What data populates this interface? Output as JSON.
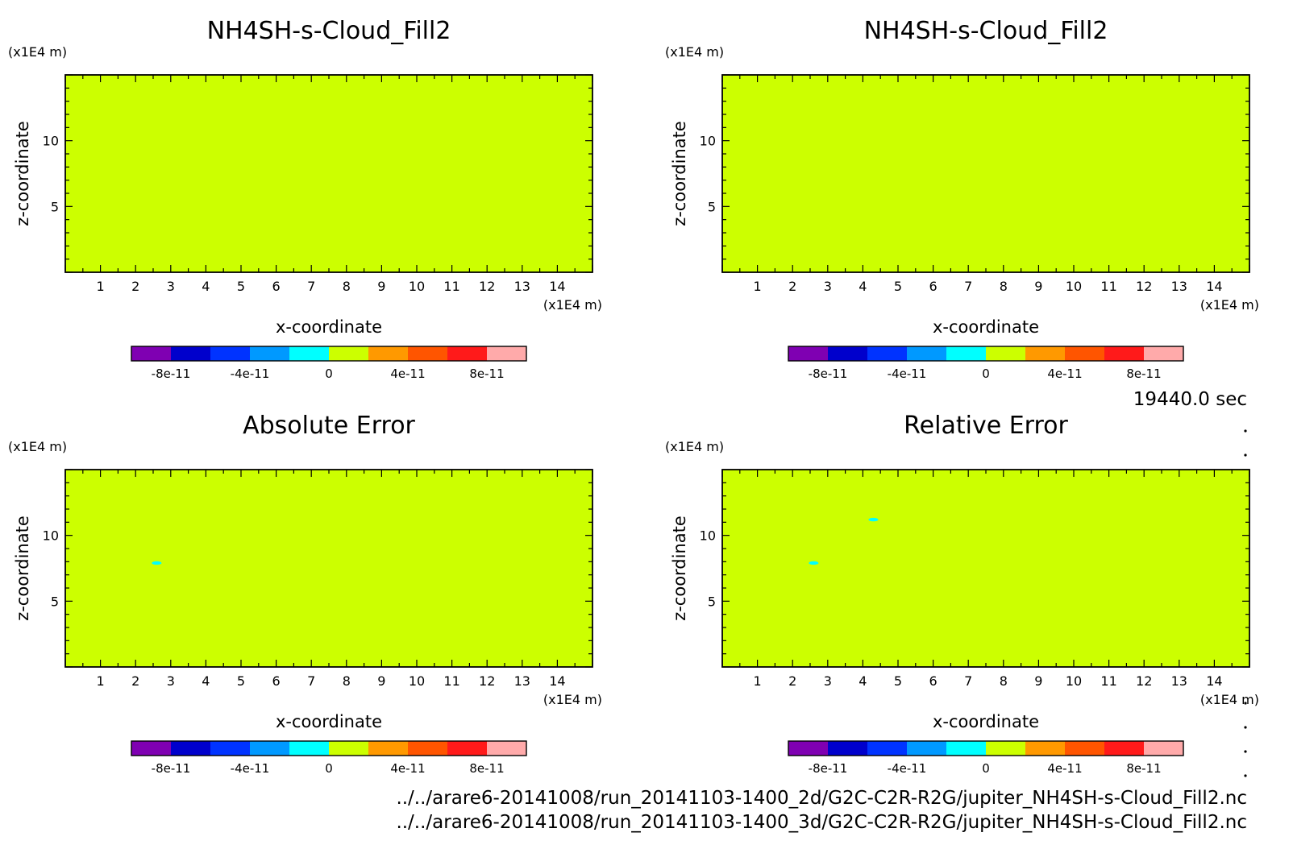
{
  "time_label": "19440.0 sec",
  "files": [
    "../../arare6-20141008/run_20141103-1400_2d/G2C-C2R-R2G/jupiter_NH4SH-s-Cloud_Fill2.nc",
    "../../arare6-20141008/run_20141103-1400_3d/G2C-C2R-R2G/jupiter_NH4SH-s-Cloud_Fill2.nc"
  ],
  "colorbar": {
    "colors": [
      "#7f00b2",
      "#0000cc",
      "#0033ff",
      "#0099ff",
      "#00ffff",
      "#ccff00",
      "#ff9900",
      "#ff5500",
      "#ff1a1a",
      "#ffaaaa"
    ],
    "tick_labels": [
      "-8e-11",
      "-4e-11",
      "0",
      "4e-11",
      "8e-11"
    ]
  },
  "chart_data": [
    {
      "type": "heatmap",
      "title": "NH4SH-s-Cloud_Fill2",
      "xlabel": "x-coordinate",
      "ylabel": "z-coordinate",
      "x_unit": "(x1E4 m)",
      "y_unit": "(x1E4 m)",
      "xlim": [
        0,
        15
      ],
      "ylim": [
        0,
        15
      ],
      "xticks": [
        "1",
        "2",
        "3",
        "4",
        "5",
        "6",
        "7",
        "8",
        "9",
        "10",
        "11",
        "12",
        "13",
        "14"
      ],
      "yticks": [
        "5",
        "10"
      ],
      "uniform_value": 0,
      "fill_color": "#ccff00",
      "spots": []
    },
    {
      "type": "heatmap",
      "title": "NH4SH-s-Cloud_Fill2",
      "xlabel": "x-coordinate",
      "ylabel": "z-coordinate",
      "x_unit": "(x1E4 m)",
      "y_unit": "(x1E4 m)",
      "xlim": [
        0,
        15
      ],
      "ylim": [
        0,
        15
      ],
      "xticks": [
        "1",
        "2",
        "3",
        "4",
        "5",
        "6",
        "7",
        "8",
        "9",
        "10",
        "11",
        "12",
        "13",
        "14"
      ],
      "yticks": [
        "5",
        "10"
      ],
      "uniform_value": 0,
      "fill_color": "#ccff00",
      "spots": []
    },
    {
      "type": "heatmap",
      "title": "Absolute Error",
      "xlabel": "x-coordinate",
      "ylabel": "z-coordinate",
      "x_unit": "(x1E4 m)",
      "y_unit": "(x1E4 m)",
      "xlim": [
        0,
        15
      ],
      "ylim": [
        0,
        15
      ],
      "xticks": [
        "1",
        "2",
        "3",
        "4",
        "5",
        "6",
        "7",
        "8",
        "9",
        "10",
        "11",
        "12",
        "13",
        "14"
      ],
      "yticks": [
        "5",
        "10"
      ],
      "uniform_value": 0,
      "fill_color": "#ccff00",
      "spots": [
        {
          "x": 2.6,
          "z": 7.9,
          "color": "#00ffff"
        }
      ]
    },
    {
      "type": "heatmap",
      "title": "Relative Error",
      "xlabel": "x-coordinate",
      "ylabel": "z-coordinate",
      "x_unit": "(x1E4 m)",
      "y_unit": "(x1E4 m)",
      "xlim": [
        0,
        15
      ],
      "ylim": [
        0,
        15
      ],
      "xticks": [
        "1",
        "2",
        "3",
        "4",
        "5",
        "6",
        "7",
        "8",
        "9",
        "10",
        "11",
        "12",
        "13",
        "14"
      ],
      "yticks": [
        "5",
        "10"
      ],
      "uniform_value": 0,
      "fill_color": "#ccff00",
      "spots": [
        {
          "x": 2.6,
          "z": 7.9,
          "color": "#00ffff"
        },
        {
          "x": 4.3,
          "z": 11.2,
          "color": "#00ffff"
        }
      ]
    }
  ]
}
